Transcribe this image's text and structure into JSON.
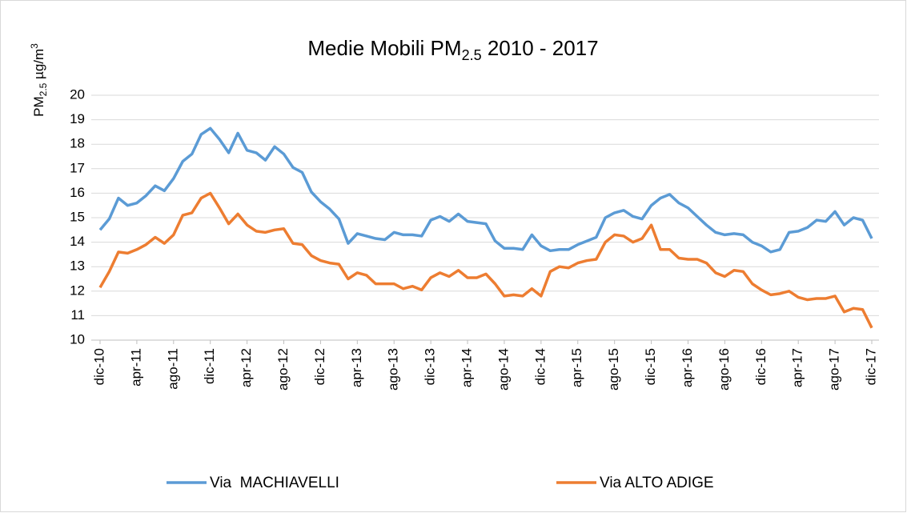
{
  "chart_data": {
    "type": "line",
    "title": {
      "text": "Medie Mobili PM",
      "sub": "2.5",
      "rest": " 2010 - 2017"
    },
    "y_label": {
      "text": "PM",
      "sub": "2.5",
      "rest": " µg/m",
      "sup": "3"
    },
    "categories": [
      "dic-10",
      null,
      null,
      null,
      "apr-11",
      null,
      null,
      null,
      "ago-11",
      null,
      null,
      null,
      "dic-11",
      null,
      null,
      null,
      "apr-12",
      null,
      null,
      null,
      "ago-12",
      null,
      null,
      null,
      "dic-12",
      null,
      null,
      null,
      "apr-13",
      null,
      null,
      null,
      "ago-13",
      null,
      null,
      null,
      "dic-13",
      null,
      null,
      null,
      "apr-14",
      null,
      null,
      null,
      "ago-14",
      null,
      null,
      null,
      "dic-14",
      null,
      null,
      null,
      "apr-15",
      null,
      null,
      null,
      "ago-15",
      null,
      null,
      null,
      "dic-15",
      null,
      null,
      null,
      "apr-16",
      null,
      null,
      null,
      "ago-16",
      null,
      null,
      null,
      "dic-16",
      null,
      null,
      null,
      "apr-17",
      null,
      null,
      null,
      "ago-17",
      null,
      null,
      null,
      "dic-17"
    ],
    "series": [
      {
        "name": "Via  MACHIAVELLI",
        "color": "#5b9bd5",
        "values": [
          14.5,
          14.95,
          15.8,
          15.5,
          15.6,
          15.9,
          16.3,
          16.1,
          16.6,
          17.3,
          17.6,
          18.4,
          18.65,
          18.2,
          17.65,
          18.45,
          17.75,
          17.65,
          17.35,
          17.9,
          17.6,
          17.05,
          16.85,
          16.05,
          15.65,
          15.35,
          14.95,
          13.95,
          14.35,
          14.25,
          14.15,
          14.1,
          14.4,
          14.3,
          14.3,
          14.25,
          14.9,
          15.05,
          14.85,
          15.15,
          14.85,
          14.8,
          14.75,
          14.05,
          13.75,
          13.75,
          13.7,
          14.3,
          13.85,
          13.65,
          13.7,
          13.7,
          13.9,
          14.05,
          14.2,
          15.0,
          15.2,
          15.3,
          15.05,
          14.95,
          15.5,
          15.8,
          15.95,
          15.6,
          15.4,
          15.05,
          14.7,
          14.4,
          14.3,
          14.35,
          14.3,
          14.0,
          13.85,
          13.6,
          13.7,
          14.4,
          14.45,
          14.6,
          14.9,
          14.85,
          15.25,
          14.7,
          15.0,
          14.9,
          14.15
        ]
      },
      {
        "name": "Via ALTO ADIGE",
        "color": "#ed7d31",
        "values": [
          12.15,
          12.8,
          13.6,
          13.55,
          13.7,
          13.9,
          14.2,
          13.95,
          14.3,
          15.1,
          15.2,
          15.8,
          16.0,
          15.4,
          14.75,
          15.15,
          14.7,
          14.45,
          14.4,
          14.5,
          14.55,
          13.95,
          13.9,
          13.45,
          13.25,
          13.15,
          13.1,
          12.5,
          12.75,
          12.65,
          12.3,
          12.3,
          12.3,
          12.1,
          12.2,
          12.05,
          12.55,
          12.75,
          12.6,
          12.85,
          12.55,
          12.55,
          12.7,
          12.3,
          11.8,
          11.85,
          11.8,
          12.1,
          11.8,
          12.8,
          13.0,
          12.95,
          13.15,
          13.25,
          13.3,
          14.0,
          14.3,
          14.25,
          14.0,
          14.15,
          14.7,
          13.7,
          13.7,
          13.35,
          13.3,
          13.3,
          13.15,
          12.75,
          12.6,
          12.85,
          12.8,
          12.3,
          12.05,
          11.85,
          11.9,
          12.0,
          11.75,
          11.65,
          11.7,
          11.7,
          11.8,
          11.15,
          11.3,
          11.25,
          10.5
        ]
      }
    ],
    "ylim": [
      10,
      20
    ],
    "yticks": [
      10,
      11,
      12,
      13,
      14,
      15,
      16,
      17,
      18,
      19,
      20
    ],
    "grid": true,
    "legend": "bottom"
  }
}
